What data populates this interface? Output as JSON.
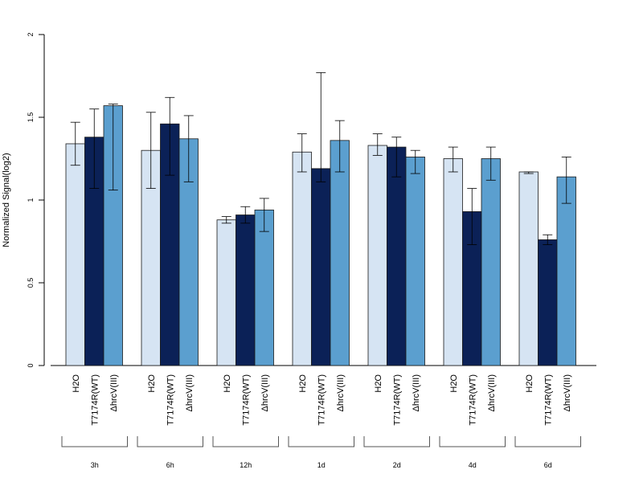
{
  "chart_data": {
    "type": "bar",
    "ylabel": "Normalized Signal(log2)",
    "ylim": [
      0,
      2
    ],
    "yticks": [
      0,
      0.5,
      1,
      1.5,
      2
    ],
    "ytick_labels": [
      "0",
      "0.5",
      "1",
      "1.5",
      "2"
    ],
    "series": [
      {
        "name": "H2O",
        "label": "H2O",
        "color": "#d6e4f3"
      },
      {
        "name": "T7174R(WT)",
        "label": "T7174R(WT)",
        "color": "#0b2157"
      },
      {
        "name": "ΔhrcV(III)",
        "label": "ΔhrcV(III)",
        "color": "#5b9fcf"
      }
    ],
    "groups": [
      {
        "label": "3h",
        "bars": [
          {
            "value": 1.34,
            "err_low": 1.21,
            "err_high": 1.47
          },
          {
            "value": 1.38,
            "err_low": 1.07,
            "err_high": 1.55
          },
          {
            "value": 1.57,
            "err_low": 1.06,
            "err_high": 1.58
          }
        ]
      },
      {
        "label": "6h",
        "bars": [
          {
            "value": 1.3,
            "err_low": 1.07,
            "err_high": 1.53
          },
          {
            "value": 1.46,
            "err_low": 1.15,
            "err_high": 1.62
          },
          {
            "value": 1.37,
            "err_low": 1.11,
            "err_high": 1.51
          }
        ]
      },
      {
        "label": "12h",
        "bars": [
          {
            "value": 0.88,
            "err_low": 0.86,
            "err_high": 0.9
          },
          {
            "value": 0.91,
            "err_low": 0.86,
            "err_high": 0.96
          },
          {
            "value": 0.94,
            "err_low": 0.81,
            "err_high": 1.01
          }
        ]
      },
      {
        "label": "1d",
        "bars": [
          {
            "value": 1.29,
            "err_low": 1.17,
            "err_high": 1.4
          },
          {
            "value": 1.19,
            "err_low": 1.11,
            "err_high": 1.77
          },
          {
            "value": 1.36,
            "err_low": 1.17,
            "err_high": 1.48
          }
        ]
      },
      {
        "label": "2d",
        "bars": [
          {
            "value": 1.33,
            "err_low": 1.27,
            "err_high": 1.4
          },
          {
            "value": 1.32,
            "err_low": 1.14,
            "err_high": 1.38
          },
          {
            "value": 1.26,
            "err_low": 1.16,
            "err_high": 1.3
          }
        ]
      },
      {
        "label": "4d",
        "bars": [
          {
            "value": 1.25,
            "err_low": 1.17,
            "err_high": 1.32
          },
          {
            "value": 0.93,
            "err_low": 0.73,
            "err_high": 1.07
          },
          {
            "value": 1.25,
            "err_low": 1.12,
            "err_high": 1.32
          }
        ]
      },
      {
        "label": "6d",
        "bars": [
          {
            "value": 1.17,
            "err_low": 1.16,
            "err_high": 1.17
          },
          {
            "value": 0.76,
            "err_low": 0.73,
            "err_high": 0.79
          },
          {
            "value": 1.14,
            "err_low": 0.98,
            "err_high": 1.26
          }
        ]
      }
    ]
  }
}
